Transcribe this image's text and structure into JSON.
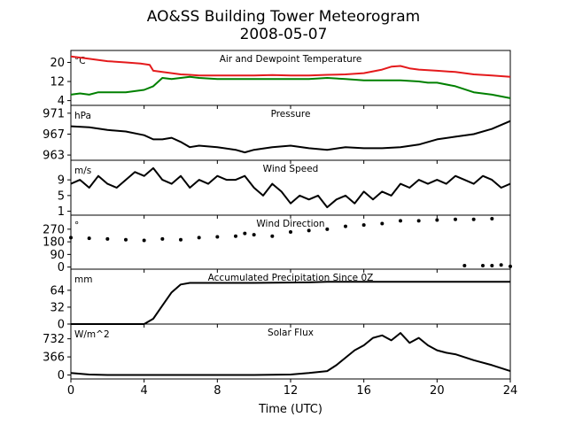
{
  "figure": {
    "title": "AO&SS Building Tower Meteorogram",
    "subtitle": "2008-05-07",
    "xlabel": "Time (UTC)",
    "x_ticks": [
      "0",
      "4",
      "8",
      "12",
      "16",
      "20",
      "24"
    ]
  },
  "chart_data": [
    {
      "type": "line",
      "title": "Air and Dewpoint Temperature",
      "ylabel": "°C",
      "ylim": [
        2,
        25
      ],
      "yticks": [
        4,
        12,
        20
      ],
      "xlim": [
        0,
        24
      ],
      "grid": false,
      "series": [
        {
          "color": "#e41a1c",
          "x": [
            0,
            1,
            2,
            3,
            3.8,
            4.3,
            4.5,
            5,
            5.5,
            6,
            6.5,
            7,
            8,
            9,
            10,
            11,
            12,
            13,
            14,
            15,
            16,
            17,
            17.5,
            18,
            18.5,
            19,
            20,
            21,
            22,
            23,
            24
          ],
          "values": [
            22.5,
            21.5,
            20.5,
            20,
            19.5,
            19,
            16.5,
            16,
            15.5,
            15,
            14.8,
            14.5,
            14.5,
            14.5,
            14.5,
            14.7,
            14.5,
            14.5,
            14.8,
            15,
            15.5,
            17,
            18.2,
            18.5,
            17.5,
            17,
            16.5,
            16,
            15,
            14.5,
            14
          ]
        },
        {
          "color": "#008000",
          "x": [
            0,
            0.5,
            1,
            1.5,
            2,
            3,
            4,
            4.5,
            5,
            5.5,
            6,
            6.5,
            7,
            8,
            9,
            10,
            11,
            12,
            13,
            14,
            15,
            16,
            17,
            18,
            19,
            19.5,
            20,
            21,
            22,
            23,
            24
          ],
          "values": [
            6.5,
            7,
            6.5,
            7.5,
            7.5,
            7.5,
            8.5,
            10,
            13.5,
            13,
            13.5,
            14,
            13.5,
            13,
            13,
            13,
            13,
            13,
            13,
            13.5,
            13,
            12.5,
            12.5,
            12.5,
            12,
            11.5,
            11.5,
            10,
            7.5,
            6.5,
            5
          ]
        }
      ]
    },
    {
      "type": "line",
      "title": "Pressure",
      "ylabel": "hPa",
      "ylim": [
        962,
        972.5
      ],
      "yticks": [
        963,
        967,
        971
      ],
      "xlim": [
        0,
        24
      ],
      "grid": false,
      "series": [
        {
          "color": "#000000",
          "x": [
            0,
            1,
            2,
            3,
            4,
            4.5,
            5,
            5.5,
            6,
            6.5,
            7,
            8,
            9,
            9.5,
            10,
            11,
            12,
            13,
            14,
            15,
            16,
            17,
            18,
            19,
            20,
            21,
            22,
            23,
            24
          ],
          "values": [
            968.5,
            968.3,
            967.8,
            967.5,
            966.8,
            966,
            966,
            966.3,
            965.5,
            964.5,
            964.8,
            964.5,
            964,
            963.5,
            964,
            964.5,
            964.8,
            964.3,
            964,
            964.5,
            964.3,
            964.3,
            964.5,
            965,
            966,
            966.5,
            967,
            968,
            969.5
          ]
        }
      ]
    },
    {
      "type": "line",
      "title": "Wind Speed",
      "ylabel": "m/s",
      "ylim": [
        0,
        14
      ],
      "yticks": [
        1,
        5,
        9
      ],
      "xlim": [
        0,
        24
      ],
      "grid": false,
      "series": [
        {
          "color": "#000000",
          "x": [
            0,
            0.5,
            1,
            1.5,
            2,
            2.5,
            3,
            3.5,
            4,
            4.5,
            5,
            5.5,
            6,
            6.5,
            7,
            7.5,
            8,
            8.5,
            9,
            9.5,
            10,
            10.5,
            11,
            11.5,
            12,
            12.5,
            13,
            13.5,
            14,
            14.5,
            15,
            15.5,
            16,
            16.5,
            17,
            17.5,
            18,
            18.5,
            19,
            19.5,
            20,
            20.5,
            21,
            21.5,
            22,
            22.5,
            23,
            23.5,
            24
          ],
          "values": [
            8,
            9,
            7,
            10,
            8,
            7,
            9,
            11,
            10,
            12,
            9,
            8,
            10,
            7,
            9,
            8,
            10,
            9,
            9,
            10,
            7,
            5,
            8,
            6,
            3,
            5,
            4,
            5,
            2,
            4,
            5,
            3,
            6,
            4,
            6,
            5,
            8,
            7,
            9,
            8,
            9,
            8,
            10,
            9,
            8,
            10,
            9,
            7,
            8
          ]
        }
      ]
    },
    {
      "type": "scatter",
      "title": "Wind Direction",
      "ylabel": "°",
      "ylim": [
        -15,
        370
      ],
      "yticks": [
        0,
        90,
        180,
        270
      ],
      "xlim": [
        0,
        24
      ],
      "grid": false,
      "series": [
        {
          "color": "#000000",
          "x": [
            0,
            1,
            2,
            3,
            4,
            5,
            6,
            7,
            8,
            9,
            9.5,
            10,
            11,
            12,
            13,
            14,
            15,
            16,
            17,
            18,
            19,
            20,
            21,
            22,
            23
          ],
          "values": [
            210,
            205,
            200,
            195,
            190,
            200,
            195,
            210,
            215,
            220,
            240,
            230,
            220,
            250,
            260,
            270,
            290,
            300,
            310,
            330,
            330,
            335,
            340,
            340,
            345
          ]
        },
        {
          "color": "#000000",
          "x": [
            21.5,
            22.5,
            23,
            23.5,
            24
          ],
          "values": [
            10,
            10,
            10,
            15,
            5
          ]
        }
      ]
    },
    {
      "type": "line",
      "title": "Accumulated Precipitation Since 0Z",
      "ylabel": "mm",
      "ylim": [
        0,
        104
      ],
      "yticks": [
        0,
        32,
        64
      ],
      "xlim": [
        0,
        24
      ],
      "grid": false,
      "series": [
        {
          "color": "#000000",
          "x": [
            0,
            4,
            4.5,
            5,
            5.5,
            6,
            6.5,
            7,
            10,
            13,
            14,
            24
          ],
          "values": [
            0,
            0,
            10,
            35,
            60,
            75,
            78,
            78,
            78,
            79,
            80,
            80
          ]
        }
      ]
    },
    {
      "type": "line",
      "title": "Solar Flux",
      "ylabel": "W/m^2",
      "ylim": [
        -80,
        1030
      ],
      "yticks": [
        0,
        366,
        732
      ],
      "xlim": [
        0,
        24
      ],
      "grid": false,
      "series": [
        {
          "color": "#000000",
          "x": [
            0,
            1,
            2,
            4,
            6,
            8,
            10,
            12,
            13,
            14,
            14.5,
            15,
            15.5,
            16,
            16.5,
            17,
            17.5,
            18,
            18.5,
            19,
            19.5,
            20,
            20.5,
            21,
            22,
            23,
            24
          ],
          "values": [
            40,
            10,
            0,
            0,
            0,
            0,
            0,
            10,
            40,
            80,
            200,
            350,
            500,
            600,
            750,
            800,
            700,
            850,
            650,
            750,
            600,
            500,
            450,
            420,
            300,
            200,
            80
          ]
        }
      ]
    }
  ]
}
